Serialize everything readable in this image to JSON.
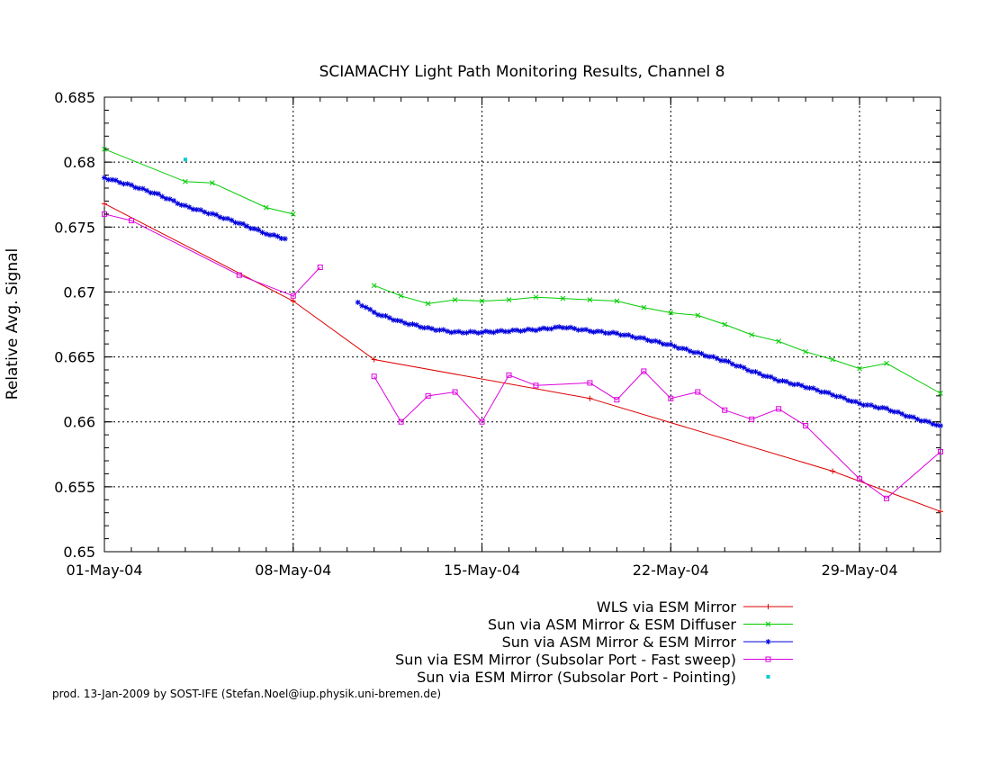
{
  "chart_data": {
    "type": "line",
    "title": "SCIAMACHY Light Path Monitoring Results, Channel 8",
    "ylabel": "Relative Avg. Signal",
    "xlabel": "",
    "footer": "prod. 13-Jan-2009 by SOST-IFE (Stefan.Noel@iup.physik.uni-bremen.de)",
    "x_unit": "date",
    "xlim": [
      "2004-05-01",
      "2004-06-01"
    ],
    "ylim": [
      0.65,
      0.685
    ],
    "grid": true,
    "legend_placement": "bottom-right, below plot",
    "x_tick_labels": [
      "01-May-04",
      "08-May-04",
      "15-May-04",
      "22-May-04",
      "29-May-04"
    ],
    "y_tick_labels": [
      "0.65",
      "0.655",
      "0.66",
      "0.665",
      "0.67",
      "0.675",
      "0.68",
      "0.685"
    ],
    "series": [
      {
        "name": "WLS via ESM Mirror",
        "color": "#dd0000",
        "marker": "plus",
        "segments": [
          [
            [
              "2004-05-01",
              0.6768
            ],
            [
              "2004-05-08",
              0.6693
            ],
            [
              "2004-05-11",
              0.6648
            ],
            [
              "2004-05-19",
              0.6618
            ],
            [
              "2004-05-28",
              0.6562
            ],
            [
              "2004-06-01",
              0.6531
            ]
          ]
        ]
      },
      {
        "name": "Sun via ASM Mirror & ESM Diffuser",
        "color": "#00cc00",
        "marker": "x",
        "segments": [
          [
            [
              "2004-05-01",
              0.681
            ],
            [
              "2004-05-04",
              0.6785
            ],
            [
              "2004-05-05",
              0.6784
            ],
            [
              "2004-05-07",
              0.6765
            ],
            [
              "2004-05-08",
              0.676
            ]
          ],
          [
            [
              "2004-05-11",
              0.6705
            ],
            [
              "2004-05-12",
              0.6697
            ],
            [
              "2004-05-13",
              0.6691
            ],
            [
              "2004-05-14",
              0.6694
            ],
            [
              "2004-05-15",
              0.6693
            ],
            [
              "2004-05-16",
              0.6694
            ],
            [
              "2004-05-17",
              0.6696
            ],
            [
              "2004-05-18",
              0.6695
            ],
            [
              "2004-05-19",
              0.6694
            ],
            [
              "2004-05-20",
              0.6693
            ],
            [
              "2004-05-21",
              0.6688
            ],
            [
              "2004-05-22",
              0.6684
            ],
            [
              "2004-05-23",
              0.6682
            ],
            [
              "2004-05-24",
              0.6675
            ],
            [
              "2004-05-25",
              0.6667
            ],
            [
              "2004-05-26",
              0.6662
            ],
            [
              "2004-05-27",
              0.6654
            ],
            [
              "2004-05-28",
              0.6648
            ],
            [
              "2004-05-29",
              0.6641
            ],
            [
              "2004-05-30",
              0.6645
            ],
            [
              "2004-06-01",
              0.6622
            ]
          ]
        ]
      },
      {
        "name": "Sun via ASM Mirror & ESM Mirror",
        "color": "#0000dd",
        "marker": "star",
        "dense": true,
        "segments": [
          [
            [
              "2004-05-01",
              0.6788
            ],
            [
              "2004-05-02",
              0.6782
            ],
            [
              "2004-05-03",
              0.6775
            ],
            [
              "2004-05-04",
              0.6766
            ],
            [
              "2004-05-05",
              0.676
            ],
            [
              "2004-05-06",
              0.6753
            ],
            [
              "2004-05-07",
              0.6745
            ],
            [
              "2004-05-07.7",
              0.6741
            ]
          ],
          [
            [
              "2004-05-10.4",
              0.6692
            ],
            [
              "2004-05-11",
              0.6684
            ],
            [
              "2004-05-12",
              0.6677
            ],
            [
              "2004-05-13",
              0.6672
            ],
            [
              "2004-05-14",
              0.6669
            ],
            [
              "2004-05-15",
              0.6669
            ],
            [
              "2004-05-16",
              0.667
            ],
            [
              "2004-05-17",
              0.6671
            ],
            [
              "2004-05-18",
              0.6673
            ],
            [
              "2004-05-19",
              0.667
            ],
            [
              "2004-05-20",
              0.6668
            ],
            [
              "2004-05-21",
              0.6664
            ],
            [
              "2004-05-22",
              0.6659
            ],
            [
              "2004-05-23",
              0.6653
            ],
            [
              "2004-05-24",
              0.6647
            ],
            [
              "2004-05-25",
              0.6639
            ],
            [
              "2004-05-26",
              0.6632
            ],
            [
              "2004-05-27",
              0.6627
            ],
            [
              "2004-05-28",
              0.6621
            ],
            [
              "2004-05-29",
              0.6614
            ],
            [
              "2004-05-30",
              0.661
            ],
            [
              "2004-05-31",
              0.6603
            ],
            [
              "2004-06-01",
              0.6597
            ]
          ]
        ]
      },
      {
        "name": "Sun via ESM Mirror (Subsolar Port - Fast sweep)",
        "color": "#dd00dd",
        "marker": "square",
        "segments": [
          [
            [
              "2004-05-01",
              0.676
            ],
            [
              "2004-05-02",
              0.6755
            ],
            [
              "2004-05-06",
              0.6713
            ],
            [
              "2004-05-08",
              0.6697
            ],
            [
              "2004-05-09",
              0.6719
            ]
          ],
          [
            [
              "2004-05-11",
              0.6635
            ],
            [
              "2004-05-12",
              0.66
            ],
            [
              "2004-05-13",
              0.662
            ],
            [
              "2004-05-14",
              0.6623
            ],
            [
              "2004-05-15",
              0.66
            ],
            [
              "2004-05-16",
              0.6636
            ],
            [
              "2004-05-17",
              0.6628
            ],
            [
              "2004-05-19",
              0.663
            ],
            [
              "2004-05-20",
              0.6617
            ],
            [
              "2004-05-21",
              0.6639
            ],
            [
              "2004-05-22",
              0.6618
            ],
            [
              "2004-05-23",
              0.6623
            ],
            [
              "2004-05-24",
              0.6609
            ],
            [
              "2004-05-25",
              0.6602
            ],
            [
              "2004-05-26",
              0.661
            ],
            [
              "2004-05-27",
              0.6597
            ],
            [
              "2004-05-29",
              0.6556
            ],
            [
              "2004-05-30",
              0.6541
            ],
            [
              "2004-06-01",
              0.6577
            ]
          ]
        ]
      },
      {
        "name": "Sun via ESM Mirror (Subsolar Port - Pointing)",
        "color": "#00cccc",
        "marker": "dot",
        "segments": [
          [
            [
              "2004-05-04",
              0.6802
            ]
          ]
        ]
      }
    ]
  }
}
